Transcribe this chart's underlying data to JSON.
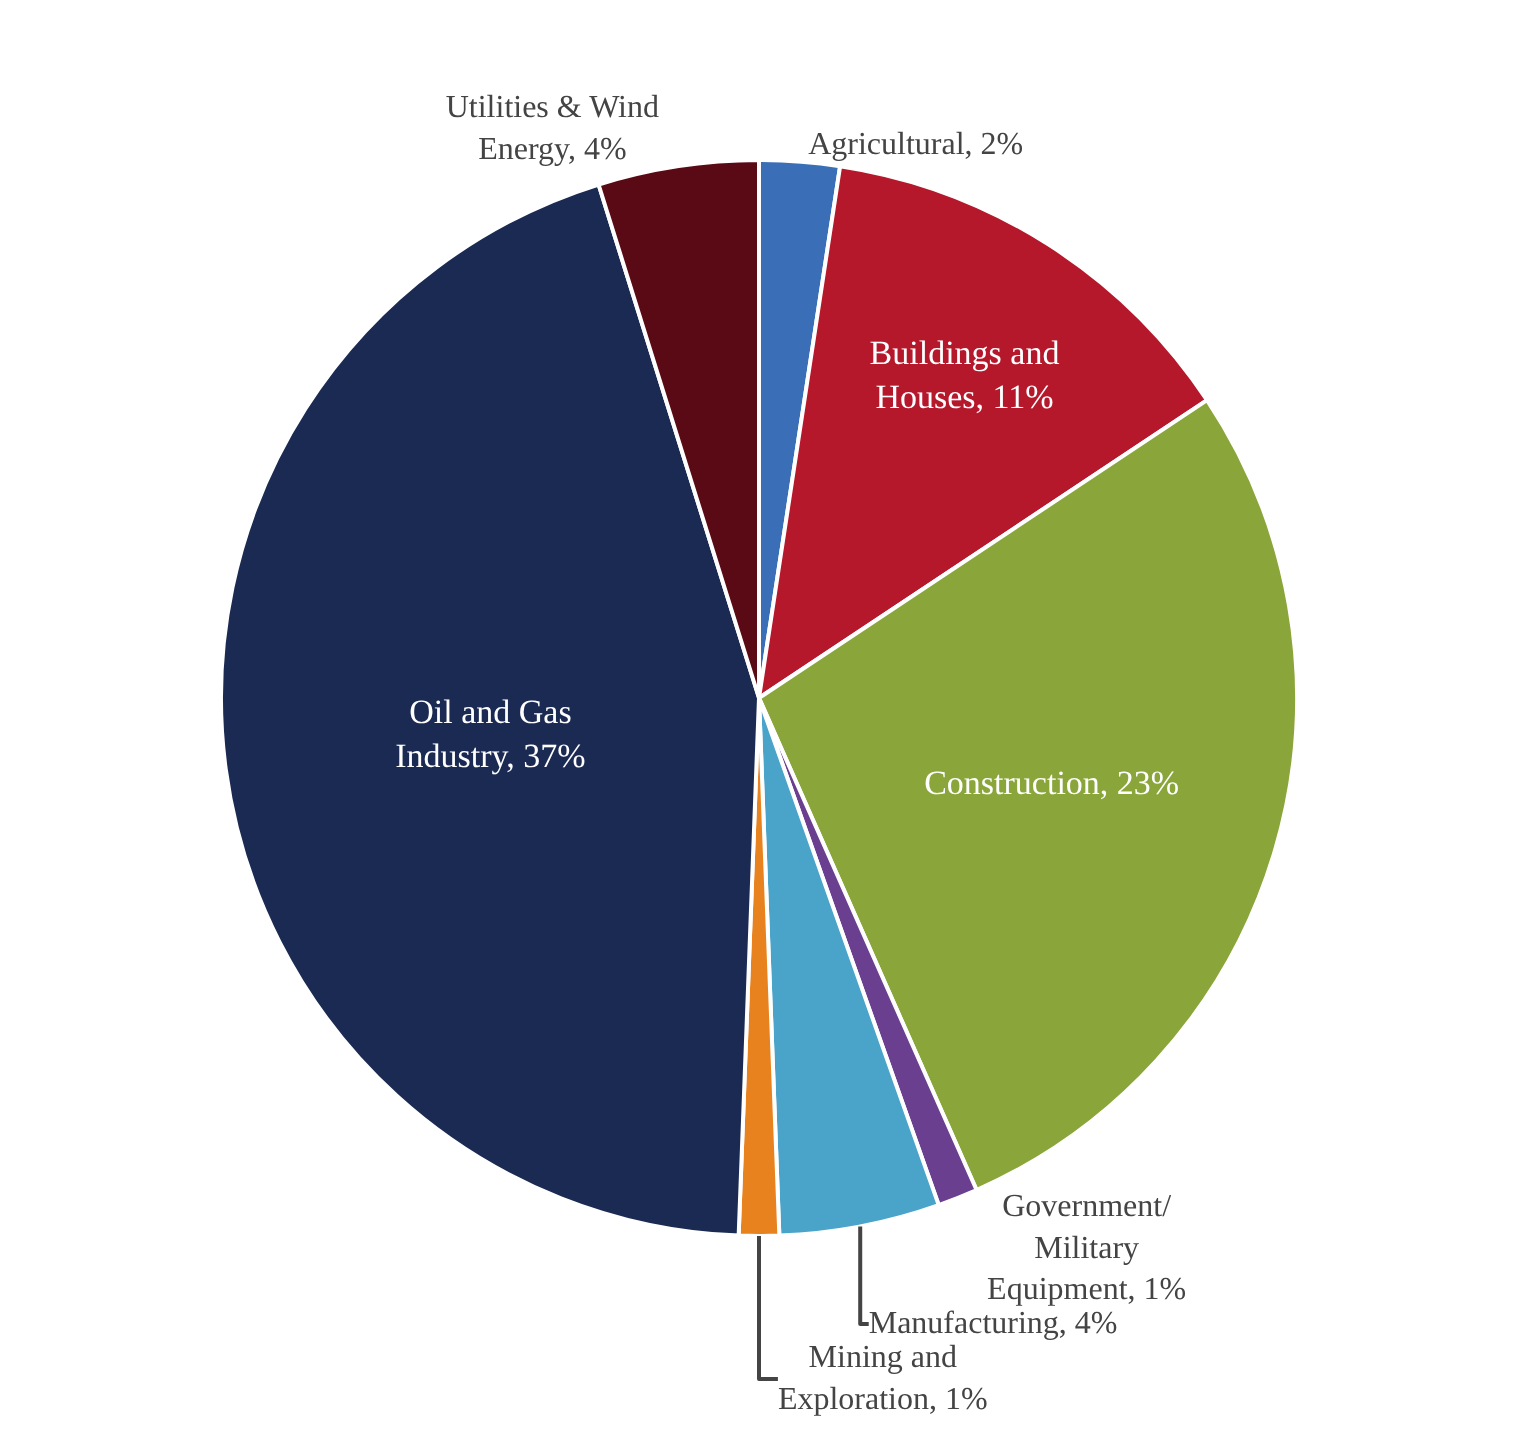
{
  "chart_data": {
    "type": "pie",
    "categories": [
      "Agricultural",
      "Buildings and Houses",
      "Construction",
      "Government/ Military Equipment",
      "Manufacturing",
      "Mining and Exploration",
      "Oil and Gas Industry",
      "Utilities & Wind Energy"
    ],
    "value_labels": [
      "2%",
      "11%",
      "23%",
      "1%",
      "4%",
      "1%",
      "37%",
      "4%"
    ],
    "values": [
      2,
      11,
      23,
      1,
      4,
      1,
      37,
      4
    ],
    "colors": [
      "#3a6fb8",
      "#b5172b",
      "#8aa53a",
      "#6b3f8f",
      "#4aa3c8",
      "#e8821e",
      "#1b2a52",
      "#5a0a14"
    ],
    "legend": false
  }
}
